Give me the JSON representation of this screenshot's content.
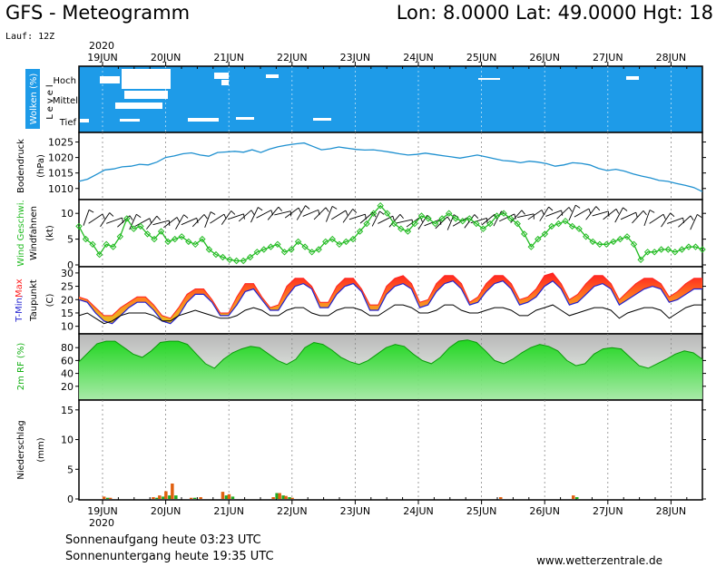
{
  "header": {
    "title": "GFS - Meteogramm",
    "location": "Lon: 8.0000  Lat: 49.0000  Hgt: 18",
    "run": "Lauf: 12Z"
  },
  "footer": {
    "sunrise": "Sonnenaufgang heute 03:23 UTC",
    "sunset": "Sonnenuntergang heute 19:35 UTC",
    "source": "www.wetterzentrale.de"
  },
  "chart_data": {
    "type": "meteogram",
    "year": "2020",
    "x_labels": [
      "19JUN",
      "20JUN",
      "21JUN",
      "22JUN",
      "23JUN",
      "24JUN",
      "25JUN",
      "26JUN",
      "27JUN",
      "28JUN"
    ],
    "colors": {
      "sky": "#1e9be8",
      "pressure": "#1e90d0",
      "wind_speed": "#22bb22",
      "tmax": "#ff2020",
      "tmin": "#2020d0",
      "humidity": "#14c814",
      "precip_a": "#e06010",
      "precip_b": "#22aa22"
    },
    "panels": {
      "clouds": {
        "label": "Wolken (%)",
        "sub_label": "Level",
        "levels": [
          "Hoch",
          "Mittel",
          "Tief"
        ]
      },
      "pressure": {
        "label": "Bodendruck",
        "unit": "(hPa)",
        "yticks": [
          1010,
          1015,
          1020,
          1025
        ],
        "ylim": [
          1007,
          1027.5
        ],
        "values": [
          1012.3,
          1013.0,
          1014.5,
          1016.0,
          1016.3,
          1017.0,
          1017.2,
          1017.8,
          1017.6,
          1018.5,
          1020.0,
          1020.5,
          1021.2,
          1021.5,
          1020.8,
          1020.4,
          1021.6,
          1021.8,
          1022.0,
          1021.7,
          1022.5,
          1021.6,
          1022.7,
          1023.5,
          1024.0,
          1024.4,
          1024.7,
          1023.6,
          1022.5,
          1022.8,
          1023.4,
          1023.0,
          1022.6,
          1022.4,
          1022.5,
          1022.1,
          1021.7,
          1021.2,
          1020.8,
          1021.0,
          1021.4,
          1021.0,
          1020.6,
          1020.2,
          1019.8,
          1020.3,
          1020.8,
          1020.2,
          1019.6,
          1019.0,
          1018.8,
          1018.3,
          1018.8,
          1018.5,
          1018.0,
          1017.2,
          1017.6,
          1018.3,
          1018.1,
          1017.6,
          1016.5,
          1015.8,
          1016.2,
          1015.6,
          1014.7,
          1014.0,
          1013.4,
          1012.6,
          1012.3,
          1011.6,
          1011.0,
          1010.3,
          1009.0
        ]
      },
      "wind": {
        "label_a": "Wind Geschwi.",
        "label_b": "Windfahnen",
        "unit": "(kt)",
        "yticks": [
          0,
          5,
          10
        ],
        "ylim": [
          0,
          12.5
        ],
        "values": [
          7.5,
          5.0,
          4.0,
          2.0,
          4.0,
          3.5,
          5.5,
          9.0,
          7.0,
          7.5,
          6.0,
          5.0,
          6.5,
          4.5,
          5.0,
          5.5,
          4.5,
          4.0,
          5.0,
          3.0,
          2.0,
          1.5,
          1.0,
          0.8,
          0.8,
          1.5,
          2.5,
          3.0,
          3.5,
          4.0,
          2.5,
          3.0,
          4.5,
          3.5,
          2.5,
          3.0,
          4.5,
          5.0,
          4.0,
          4.5,
          5.0,
          6.5,
          8.0,
          10.0,
          11.5,
          10.0,
          8.0,
          7.0,
          6.5,
          8.0,
          9.5,
          9.0,
          8.0,
          9.0,
          10.0,
          9.0,
          8.5,
          9.0,
          8.0,
          7.0,
          8.0,
          9.5,
          10.0,
          9.0,
          8.0,
          6.0,
          3.5,
          5.0,
          6.0,
          7.5,
          8.0,
          8.5,
          7.5,
          7.0,
          5.5,
          4.5,
          4.0,
          4.0,
          4.5,
          5.0,
          5.5,
          4.0,
          1.0,
          2.5,
          2.5,
          3.0,
          3.0,
          2.5,
          3.0,
          3.5,
          3.5,
          3.0
        ]
      },
      "temperature": {
        "label_a": "T-Min,",
        "label_b": "Max",
        "label_c": "Taupunkt",
        "unit": "(C)",
        "yticks": [
          10,
          15,
          20,
          25,
          30
        ],
        "ylim": [
          7.5,
          32
        ],
        "tmax": [
          21,
          20,
          17,
          14,
          14,
          17,
          19,
          21,
          21,
          18,
          14,
          13,
          17,
          22,
          24,
          24,
          20,
          15,
          15,
          21,
          26,
          26,
          21,
          17,
          18,
          25,
          28,
          28,
          25,
          19,
          19,
          25,
          28,
          28,
          24,
          18,
          18,
          25,
          28,
          29,
          26,
          19,
          20,
          26,
          29,
          29,
          26,
          19,
          21,
          26,
          29,
          29,
          26,
          20,
          21,
          24,
          29,
          30,
          26,
          20,
          22,
          26,
          29,
          29,
          26,
          20,
          23,
          26,
          28,
          28,
          26,
          21,
          23,
          26,
          28,
          28
        ],
        "tmin": [
          20,
          19,
          15,
          12,
          11,
          14,
          17,
          19,
          19,
          16,
          12,
          11,
          14,
          19,
          22,
          22,
          19,
          14,
          14,
          18,
          23,
          24,
          20,
          16,
          16,
          21,
          25,
          26,
          24,
          17,
          17,
          22,
          25,
          26,
          23,
          16,
          16,
          22,
          25,
          26,
          24,
          17,
          18,
          23,
          26,
          27,
          24,
          18,
          19,
          23,
          26,
          27,
          24,
          18,
          19,
          21,
          25,
          27,
          24,
          18,
          19,
          22,
          25,
          26,
          24,
          18,
          20,
          22,
          24,
          25,
          24,
          19,
          20,
          22,
          24,
          24
        ],
        "dewpoint": [
          14,
          15,
          13,
          11,
          12,
          14,
          15,
          15,
          15,
          14,
          12,
          12,
          14,
          15,
          16,
          15,
          14,
          13,
          13,
          14,
          16,
          17,
          16,
          14,
          14,
          16,
          17,
          17,
          15,
          14,
          14,
          16,
          17,
          17,
          16,
          14,
          14,
          16,
          18,
          18,
          17,
          15,
          15,
          16,
          18,
          18,
          16,
          15,
          15,
          16,
          17,
          17,
          16,
          14,
          14,
          16,
          17,
          18,
          16,
          14,
          15,
          16,
          17,
          17,
          16,
          13,
          15,
          16,
          17,
          17,
          16,
          13,
          15,
          17,
          18,
          18
        ]
      },
      "humidity": {
        "label": "2m RF (%)",
        "yticks": [
          20,
          40,
          60,
          80
        ],
        "ylim": [
          0,
          100
        ],
        "values": [
          58,
          72,
          86,
          90,
          90,
          80,
          70,
          65,
          75,
          88,
          90,
          90,
          85,
          70,
          55,
          48,
          62,
          72,
          78,
          82,
          80,
          70,
          60,
          54,
          62,
          80,
          88,
          85,
          76,
          65,
          58,
          54,
          60,
          70,
          80,
          85,
          82,
          70,
          60,
          55,
          65,
          80,
          90,
          92,
          88,
          75,
          60,
          55,
          62,
          72,
          80,
          85,
          82,
          75,
          60,
          52,
          55,
          70,
          78,
          80,
          78,
          65,
          52,
          48,
          55,
          62,
          70,
          75,
          72,
          62
        ]
      },
      "precip": {
        "label": "Niederschlag",
        "unit": "(mm)",
        "yticks": [
          0,
          5,
          10,
          15
        ],
        "ylim": [
          0,
          16.5
        ],
        "bars": [
          {
            "x": 0.02,
            "a": 0.4,
            "b": 0.2
          },
          {
            "x": 0.12,
            "a": 0.2,
            "b": 0.0
          },
          {
            "x": 0.8,
            "a": 0.3,
            "b": 0.2
          },
          {
            "x": 0.9,
            "a": 0.6,
            "b": 0.4
          },
          {
            "x": 1.0,
            "a": 1.3,
            "b": 0.6
          },
          {
            "x": 1.1,
            "a": 2.6,
            "b": 0.6
          },
          {
            "x": 1.4,
            "a": 0.2,
            "b": 0.2
          },
          {
            "x": 1.55,
            "a": 0.3,
            "b": 0.0
          },
          {
            "x": 1.9,
            "a": 1.2,
            "b": 0.6
          },
          {
            "x": 2.0,
            "a": 0.8,
            "b": 0.4
          },
          {
            "x": 2.7,
            "a": 0.3,
            "b": 1.0
          },
          {
            "x": 2.8,
            "a": 1.0,
            "b": 0.6
          },
          {
            "x": 2.9,
            "a": 0.5,
            "b": 0.3
          },
          {
            "x": 3.0,
            "a": 0.2,
            "b": 0.0
          },
          {
            "x": 6.3,
            "a": 0.3,
            "b": 0.0
          },
          {
            "x": 7.45,
            "a": 0.6,
            "b": 0.3
          }
        ]
      }
    }
  }
}
